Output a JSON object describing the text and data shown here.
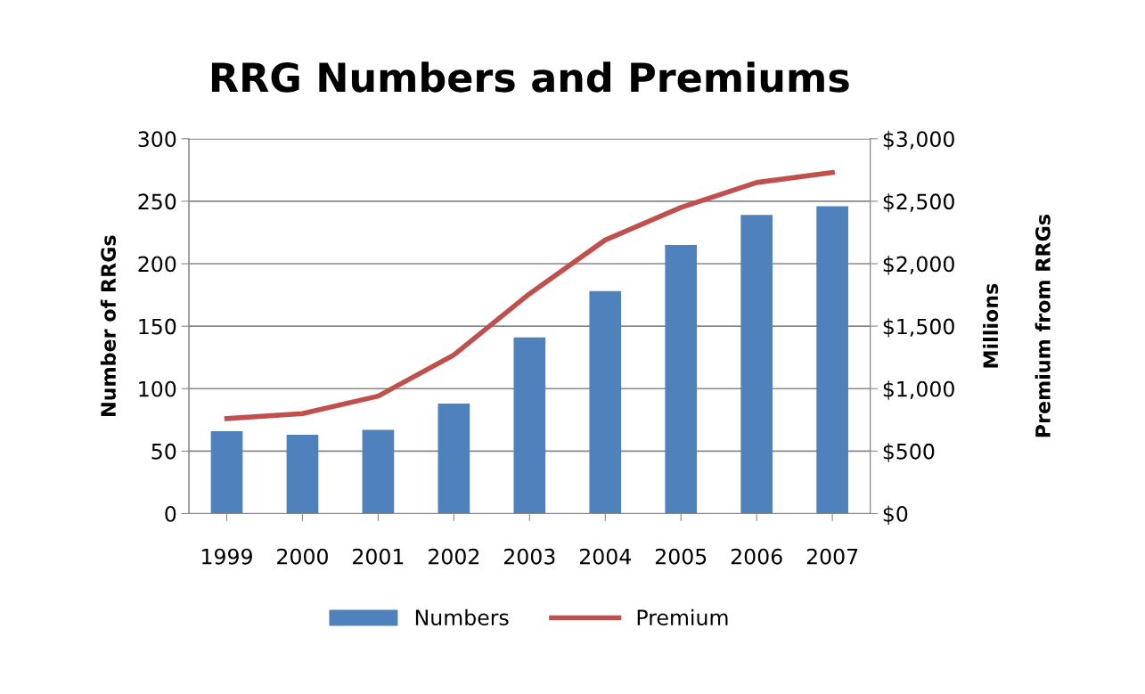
{
  "chart_data": {
    "type": "bar",
    "title": "RRG Numbers and Premiums",
    "categories": [
      "1999",
      "2000",
      "2001",
      "2002",
      "2003",
      "2004",
      "2005",
      "2006",
      "2007"
    ],
    "series": [
      {
        "name": "Numbers",
        "color": "#4f81bd",
        "values": [
          66,
          63,
          67,
          88,
          141,
          178,
          215,
          239,
          246
        ]
      },
      {
        "name": "Premium",
        "type": "line",
        "axis": "y2",
        "color": "#c0504d",
        "values": [
          760,
          800,
          940,
          1270,
          1760,
          2190,
          2450,
          2650,
          2730
        ]
      }
    ],
    "ylabel": "Number of RRGs",
    "y2label": "Millions\nPremium from RRGs",
    "ylim": [
      0,
      300
    ],
    "yticks": [
      0,
      50,
      100,
      150,
      200,
      250,
      300
    ],
    "y2lim": [
      0,
      3000
    ],
    "y2ticks": [
      {
        "value": 0,
        "label": "$0"
      },
      {
        "value": 500,
        "label": "$500"
      },
      {
        "value": 1000,
        "label": "$1,000"
      },
      {
        "value": 1500,
        "label": "$1,500"
      },
      {
        "value": 2000,
        "label": "$2,000"
      },
      {
        "value": 2500,
        "label": "$2,500"
      },
      {
        "value": 3000,
        "label": "$3,000"
      }
    ],
    "grid": "y",
    "legend": "bottom",
    "marker": "none",
    "line_style": "solid"
  }
}
